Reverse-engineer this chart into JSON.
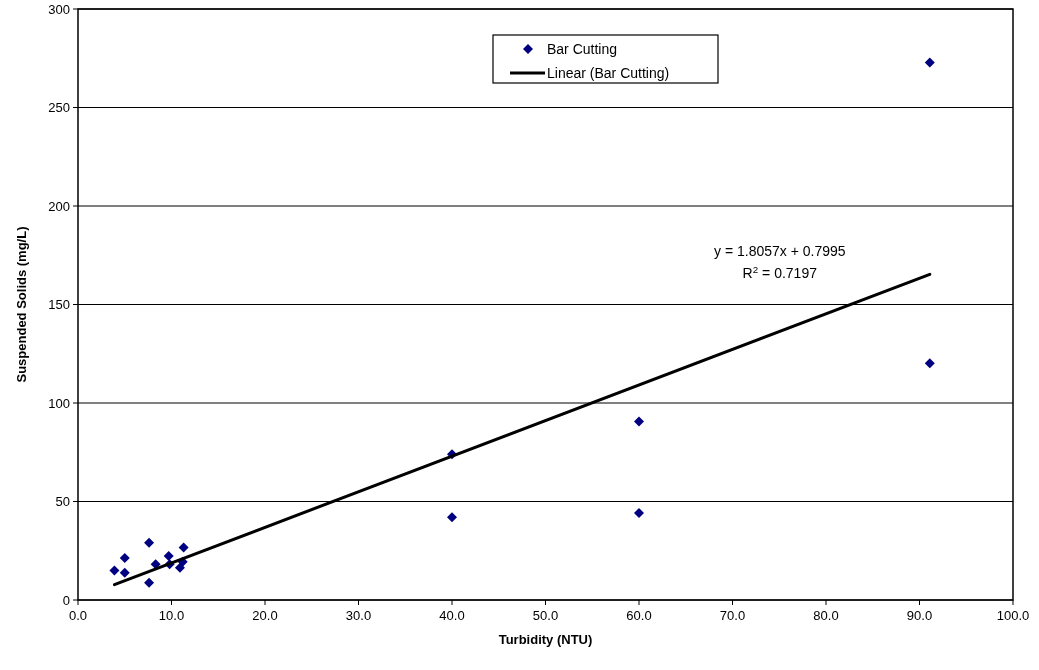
{
  "chart_data": {
    "type": "scatter",
    "xlabel": "Turbidity (NTU)",
    "ylabel": "Suspended Solids (mg/L)",
    "xlim": [
      0,
      100
    ],
    "xticks": [
      {
        "value": 0,
        "label": "0.0"
      },
      {
        "value": 10,
        "label": "10.0"
      },
      {
        "value": 20,
        "label": "20.0"
      },
      {
        "value": 30,
        "label": "30.0"
      },
      {
        "value": 40,
        "label": "40.0"
      },
      {
        "value": 50,
        "label": "50.0"
      },
      {
        "value": 60,
        "label": "60.0"
      },
      {
        "value": 70,
        "label": "70.0"
      },
      {
        "value": 80,
        "label": "80.0"
      },
      {
        "value": 90,
        "label": "90.0"
      },
      {
        "value": 100,
        "label": "100.0"
      }
    ],
    "ylim": [
      0,
      300
    ],
    "yticks": [
      0,
      50,
      100,
      150,
      200,
      250,
      300
    ],
    "grid": "y",
    "legend": "top",
    "marker": "diamond",
    "series": [
      {
        "name": "Bar Cutting",
        "color": "#000080",
        "x": [
          3.9,
          5.0,
          5.0,
          7.6,
          7.6,
          8.3,
          9.7,
          9.8,
          10.9,
          11.2,
          11.3,
          40,
          40,
          60,
          60,
          91.1,
          91.1
        ],
        "values": [
          15.0,
          13.8,
          21.3,
          29.0,
          8.8,
          18.1,
          22.3,
          18.2,
          16.4,
          19.4,
          26.7,
          74.0,
          42.0,
          90.6,
          44.1,
          272.8,
          120.2
        ]
      },
      {
        "name": "Linear (Bar Cutting)",
        "type": "line",
        "color": "#000000",
        "marker": "none",
        "x": [
          3.9,
          91.1
        ],
        "values": [
          7.8,
          165.3
        ]
      }
    ],
    "annotations": [
      "y = 1.8057x + 0.7995",
      "R$^{2}$ = 0.7197"
    ]
  }
}
